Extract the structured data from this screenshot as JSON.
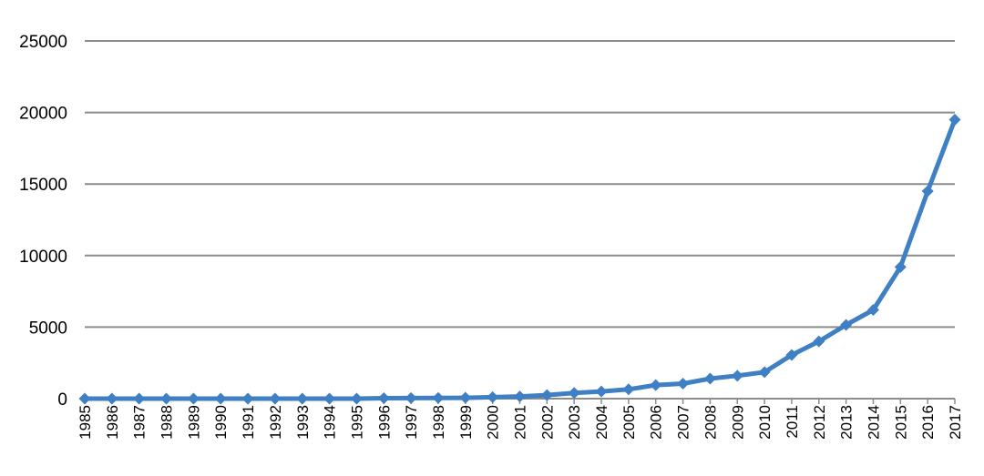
{
  "colors": {
    "line": "#3f7fc4",
    "grid": "#8c8c8c",
    "axis": "#8c8c8c",
    "text": "#000000"
  },
  "chart_data": {
    "type": "line",
    "title": "",
    "xlabel": "",
    "ylabel": "",
    "marker": "diamond",
    "grid": true,
    "legend": "none",
    "ylim": [
      0,
      25000
    ],
    "yticks": [
      "0",
      "5000",
      "10000",
      "15000",
      "20000",
      "25000"
    ],
    "categories": [
      "1985",
      "1986",
      "1987",
      "1988",
      "1989",
      "1990",
      "1991",
      "1992",
      "1993",
      "1994",
      "1995",
      "1996",
      "1997",
      "1998",
      "1999",
      "2000",
      "2001",
      "2002",
      "2003",
      "2004",
      "2005",
      "2006",
      "2007",
      "2008",
      "2009",
      "2010",
      "2011",
      "2012",
      "2013",
      "2014",
      "2015",
      "2016",
      "2017"
    ],
    "series": [
      {
        "values": [
          0,
          0,
          0,
          0,
          0,
          0,
          0,
          0,
          0,
          0,
          0,
          30,
          40,
          50,
          60,
          100,
          150,
          250,
          400,
          500,
          650,
          950,
          1050,
          1400,
          1600,
          1850,
          3050,
          4000,
          5150,
          6200,
          9200,
          14500,
          19500
        ]
      }
    ]
  }
}
